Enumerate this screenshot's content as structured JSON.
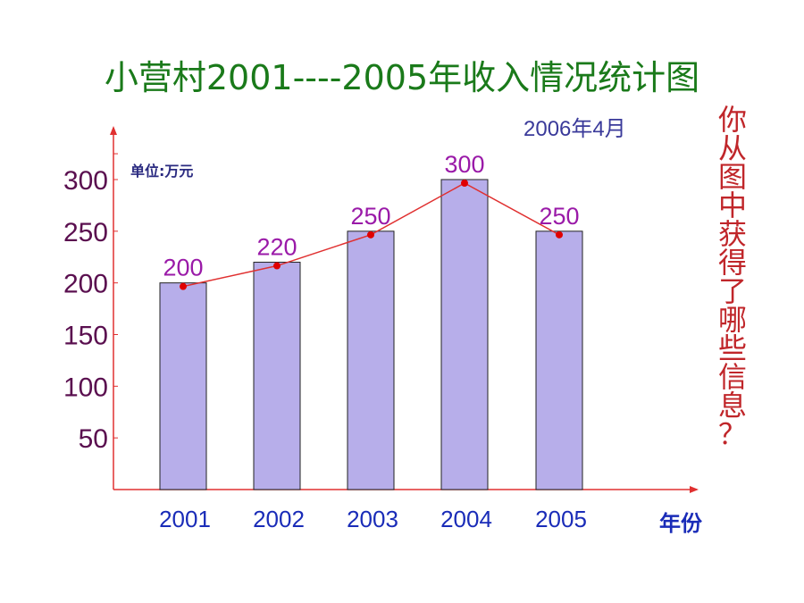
{
  "chart_data": {
    "type": "bar",
    "title": "小营村2001----2005年收入情况统计图",
    "subtitle": "2006年4月",
    "unit_label": "单位:万元",
    "xlabel": "年份",
    "categories": [
      "2001",
      "2002",
      "2003",
      "2004",
      "2005"
    ],
    "values": [
      200,
      220,
      250,
      300,
      250
    ],
    "data_labels": [
      "200",
      "220",
      "250",
      "300",
      "250"
    ],
    "yticks": [
      50,
      100,
      150,
      200,
      250,
      300
    ],
    "ytick_labels": [
      "50",
      "100",
      "150",
      "200",
      "250",
      "300"
    ],
    "ylim": [
      0,
      350
    ],
    "overlay_line": true,
    "grid": false,
    "colors": {
      "bar_fill": "#b7aeea",
      "bar_stroke": "#222222",
      "line": "#e03030",
      "marker": "#e00000",
      "axis": "#e03030",
      "data_label": "#9a1aa8",
      "ytick": "#5a0f4f",
      "xtick": "#1a2cb8"
    }
  },
  "side_question": [
    "你",
    "从",
    "图",
    "中",
    "获",
    "得",
    "了",
    "哪",
    "些",
    "信",
    "息",
    "？"
  ]
}
